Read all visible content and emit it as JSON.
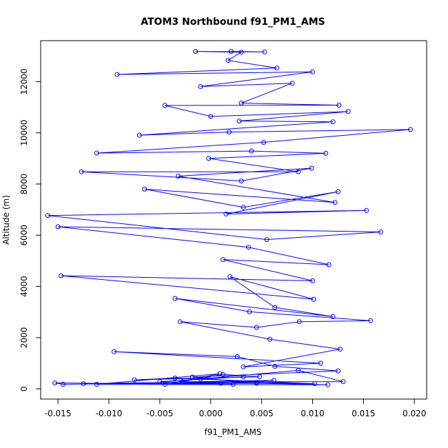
{
  "chart_data": {
    "type": "line",
    "title": "ATOM3 Northbound f91_PM1_AMS",
    "xlabel": "f91_PM1_AMS",
    "ylabel": "Altitude (m)",
    "xlim": [
      -0.0167,
      0.0212
    ],
    "ylim": [
      -400,
      13600
    ],
    "x_ticks": [
      -0.015,
      -0.01,
      -0.005,
      0.0,
      0.005,
      0.01,
      0.015,
      0.02
    ],
    "x_tick_labels": [
      "-0.015",
      "-0.010",
      "-0.005",
      "0.000",
      "0.005",
      "0.010",
      "0.015",
      "0.020"
    ],
    "y_ticks": [
      0,
      2000,
      4000,
      6000,
      8000,
      10000,
      12000
    ],
    "y_tick_labels": [
      "0",
      "2000",
      "4000",
      "6000",
      "8000",
      "10000",
      "12000"
    ],
    "grid": false,
    "legend": "none",
    "marker": "open-circle",
    "color": "#0000ff",
    "series": [
      {
        "values_description_omitted": false,
        "points": [
          [
            0.0022,
            180
          ],
          [
            -0.0153,
            230
          ],
          [
            -0.0145,
            180
          ],
          [
            0.0045,
            250
          ],
          [
            0.0102,
            200
          ],
          [
            -0.0035,
            420
          ],
          [
            -0.0075,
            350
          ],
          [
            0.0048,
            470
          ],
          [
            0.0012,
            560
          ],
          [
            -0.0045,
            170
          ],
          [
            0.0009,
            590
          ],
          [
            -0.0112,
            180
          ],
          [
            0.0115,
            160
          ],
          [
            -0.0028,
            280
          ],
          [
            0.013,
            280
          ],
          [
            0.0086,
            720
          ],
          [
            -0.001,
            380
          ],
          [
            0.0032,
            470
          ],
          [
            -0.005,
            280
          ],
          [
            0.001,
            220
          ],
          [
            0.0062,
            330
          ],
          [
            -0.0125,
            200
          ],
          [
            0.0045,
            220
          ],
          [
            -0.0018,
            460
          ],
          [
            0.0125,
            700
          ],
          [
            0.0063,
            880
          ],
          [
            0.0026,
            1260
          ],
          [
            -0.0095,
            1450
          ],
          [
            0.0108,
            1000
          ],
          [
            0.0032,
            860
          ],
          [
            0.0127,
            1550
          ],
          [
            0.0058,
            1940
          ],
          [
            -0.003,
            2620
          ],
          [
            0.0045,
            2400
          ],
          [
            0.0087,
            2620
          ],
          [
            0.0157,
            2660
          ],
          [
            0.0038,
            3010
          ],
          [
            -0.0035,
            3530
          ],
          [
            0.012,
            2820
          ],
          [
            0.0063,
            3180
          ],
          [
            0.0019,
            4380
          ],
          [
            0.0101,
            3500
          ],
          [
            -0.0147,
            4420
          ],
          [
            0.01,
            4220
          ],
          [
            0.0012,
            5050
          ],
          [
            0.0116,
            4850
          ],
          [
            0.0037,
            5530
          ],
          [
            -0.015,
            6330
          ],
          [
            0.0167,
            6130
          ],
          [
            0.0055,
            5830
          ],
          [
            -0.016,
            6770
          ],
          [
            0.0153,
            6970
          ],
          [
            0.0015,
            6830
          ],
          [
            0.0125,
            7700
          ],
          [
            0.0032,
            7090
          ],
          [
            -0.0065,
            7800
          ],
          [
            0.0122,
            7280
          ],
          [
            -0.0032,
            8310
          ],
          [
            0.0099,
            8620
          ],
          [
            0.003,
            8120
          ],
          [
            -0.0127,
            8480
          ],
          [
            0.0086,
            8480
          ],
          [
            -0.0002,
            9000
          ],
          [
            0.0113,
            9200
          ],
          [
            0.004,
            9290
          ],
          [
            -0.0112,
            9210
          ],
          [
            0.0052,
            9630
          ],
          [
            0.0196,
            10130
          ],
          [
            0.0018,
            10030
          ],
          [
            -0.007,
            9910
          ],
          [
            0.012,
            10430
          ],
          [
            0.0028,
            10460
          ],
          [
            0.0135,
            10830
          ],
          [
            0.0,
            10640
          ],
          [
            -0.0045,
            11070
          ],
          [
            0.0126,
            11080
          ],
          [
            0.003,
            11160
          ],
          [
            0.008,
            11940
          ],
          [
            -0.001,
            11810
          ],
          [
            0.01,
            12380
          ],
          [
            -0.0092,
            12280
          ],
          [
            0.0065,
            12530
          ],
          [
            0.0017,
            12830
          ],
          [
            0.003,
            13150
          ],
          [
            -0.0015,
            13180
          ],
          [
            0.0053,
            13160
          ],
          [
            0.002,
            13180
          ]
        ]
      }
    ]
  }
}
